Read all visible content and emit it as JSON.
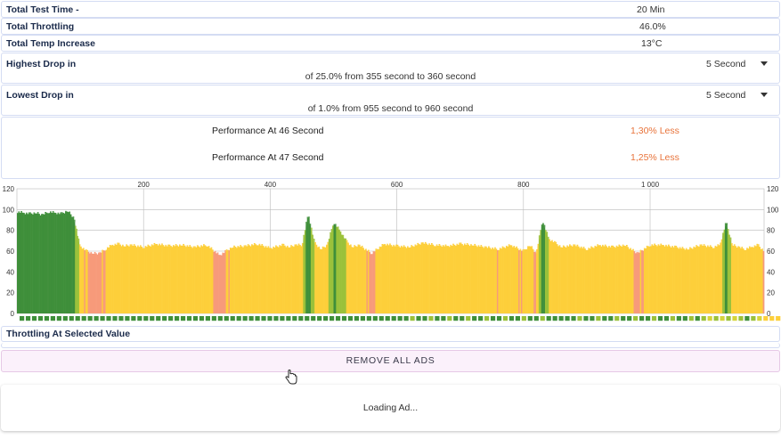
{
  "stats": {
    "test_time": {
      "label": "Total Test Time -",
      "value": "20 Min"
    },
    "throttling": {
      "label": "Total Throttling",
      "value": "46.0%"
    },
    "temp_increase": {
      "label": "Total Temp Increase",
      "value": "13°C"
    }
  },
  "highest_drop": {
    "label": "Highest Drop in",
    "interval": "5 Second",
    "detail": "of 25.0% from 355 second to  360 second"
  },
  "lowest_drop": {
    "label": "Lowest Drop in",
    "interval": "5 Second",
    "detail": "of 1.0% from 955 second to  960 second"
  },
  "performance": [
    {
      "label": "Performance At 46 Second",
      "value": "1,30% Less"
    },
    {
      "label": "Performance At 47 Second",
      "value": "1,25% Less"
    }
  ],
  "colors": {
    "green_dark": "#3f8f3a",
    "green_light": "#9bc13a",
    "yellow": "#fdcf3a",
    "salmon": "#f79a7a",
    "red": "#f27a7a",
    "accent_orange": "#e8733a"
  },
  "chart_data": {
    "type": "area",
    "xlabel": "",
    "ylabel": "",
    "x_ticks": [
      "200",
      "400",
      "600",
      "800",
      "1 000"
    ],
    "y_ticks": [
      "0",
      "20",
      "40",
      "60",
      "80",
      "100",
      "120"
    ],
    "xlim": [
      0,
      1180
    ],
    "ylim": [
      0,
      120
    ],
    "grid": true,
    "series": [
      {
        "x": [
          0,
          10,
          20,
          30,
          40,
          50,
          60,
          70,
          80,
          90,
          95,
          100,
          110,
          120,
          130,
          140,
          150,
          160,
          170,
          180,
          200,
          220,
          240,
          260,
          280,
          300,
          320,
          330,
          340,
          360,
          380,
          400,
          420,
          430,
          440,
          450,
          460,
          470,
          480,
          490,
          500,
          510,
          520,
          530,
          540,
          560,
          580,
          600,
          620,
          640,
          660,
          680,
          700,
          720,
          740,
          760,
          780,
          800,
          810,
          820,
          830,
          840,
          850,
          860,
          880,
          900,
          920,
          940,
          960,
          980,
          1000,
          1020,
          1040,
          1060,
          1080,
          1100,
          1110,
          1120,
          1130,
          1140,
          1150,
          1160,
          1170,
          1180
        ],
        "y": [
          98,
          97,
          96,
          97,
          95,
          98,
          97,
          96,
          99,
          92,
          78,
          65,
          60,
          58,
          58,
          62,
          66,
          67,
          65,
          66,
          64,
          67,
          65,
          66,
          64,
          66,
          56,
          60,
          64,
          65,
          67,
          63,
          66,
          64,
          66,
          66,
          96,
          68,
          62,
          66,
          88,
          80,
          70,
          64,
          66,
          58,
          67,
          65,
          64,
          68,
          66,
          65,
          67,
          66,
          64,
          62,
          66,
          60,
          66,
          58,
          90,
          72,
          68,
          64,
          66,
          62,
          66,
          64,
          66,
          58,
          66,
          66,
          64,
          62,
          66,
          64,
          66,
          88,
          66,
          64,
          62,
          64,
          66,
          60
        ]
      }
    ]
  },
  "throttling_selected_label": "Throttling At Selected Value",
  "remove_ads_label": "REMOVE ALL ADS",
  "ad_loading_text": "Loading Ad..."
}
